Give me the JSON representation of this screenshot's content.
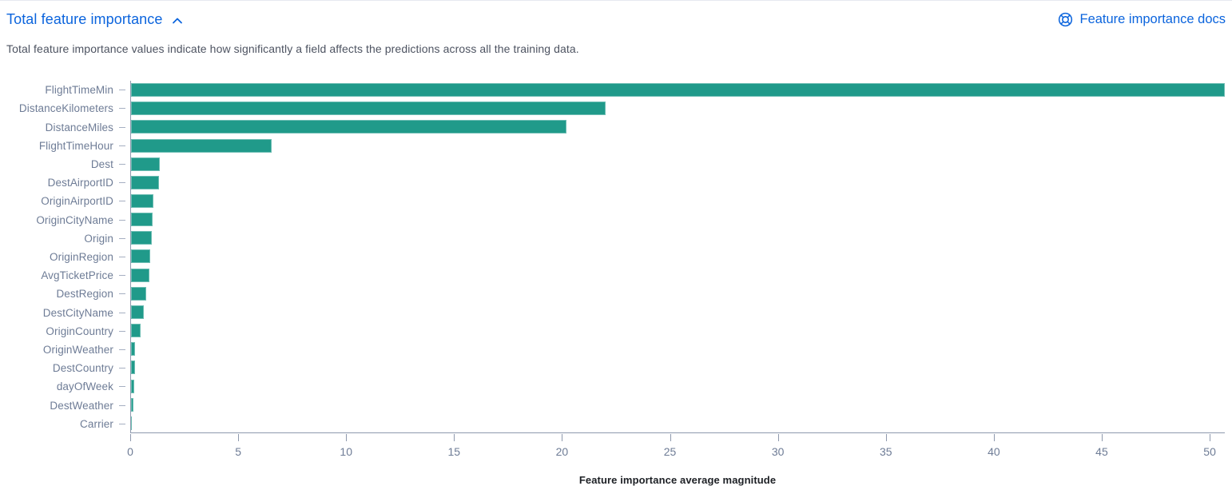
{
  "accordion": {
    "title": "Total feature importance",
    "state": "expanded",
    "toggle_icon": "chevron-up-icon"
  },
  "docs_link": {
    "label": "Feature importance docs",
    "icon": "help-lifebuoy-icon"
  },
  "description": "Total feature importance values indicate how significantly a field affects the predictions across all the training data.",
  "colors": {
    "accent_blue": "#0b64dd",
    "bar_teal": "#209a8a",
    "axis_label": "#6e7c96",
    "axis_line": "#8e99ad",
    "description_text": "#4d5361"
  },
  "chart_data": {
    "type": "bar",
    "orientation": "horizontal",
    "title": "",
    "xlabel": "Feature importance average magnitude",
    "ylabel": "",
    "xlim": [
      0,
      50.7
    ],
    "xticks": [
      0,
      5,
      10,
      15,
      20,
      25,
      30,
      35,
      40,
      45,
      50
    ],
    "grid": false,
    "legend": false,
    "bar_color": "#209a8a",
    "categories": [
      "FlightTimeMin",
      "DistanceKilometers",
      "DistanceMiles",
      "FlightTimeHour",
      "Dest",
      "DestAirportID",
      "OriginAirportID",
      "OriginCityName",
      "Origin",
      "OriginRegion",
      "AvgTicketPrice",
      "DestRegion",
      "DestCityName",
      "OriginCountry",
      "OriginWeather",
      "DestCountry",
      "dayOfWeek",
      "DestWeather",
      "Carrier"
    ],
    "values": [
      50.7,
      22.0,
      20.2,
      6.5,
      1.35,
      1.3,
      1.05,
      1.0,
      0.95,
      0.9,
      0.85,
      0.72,
      0.6,
      0.43,
      0.2,
      0.18,
      0.15,
      0.12,
      0.04
    ]
  }
}
